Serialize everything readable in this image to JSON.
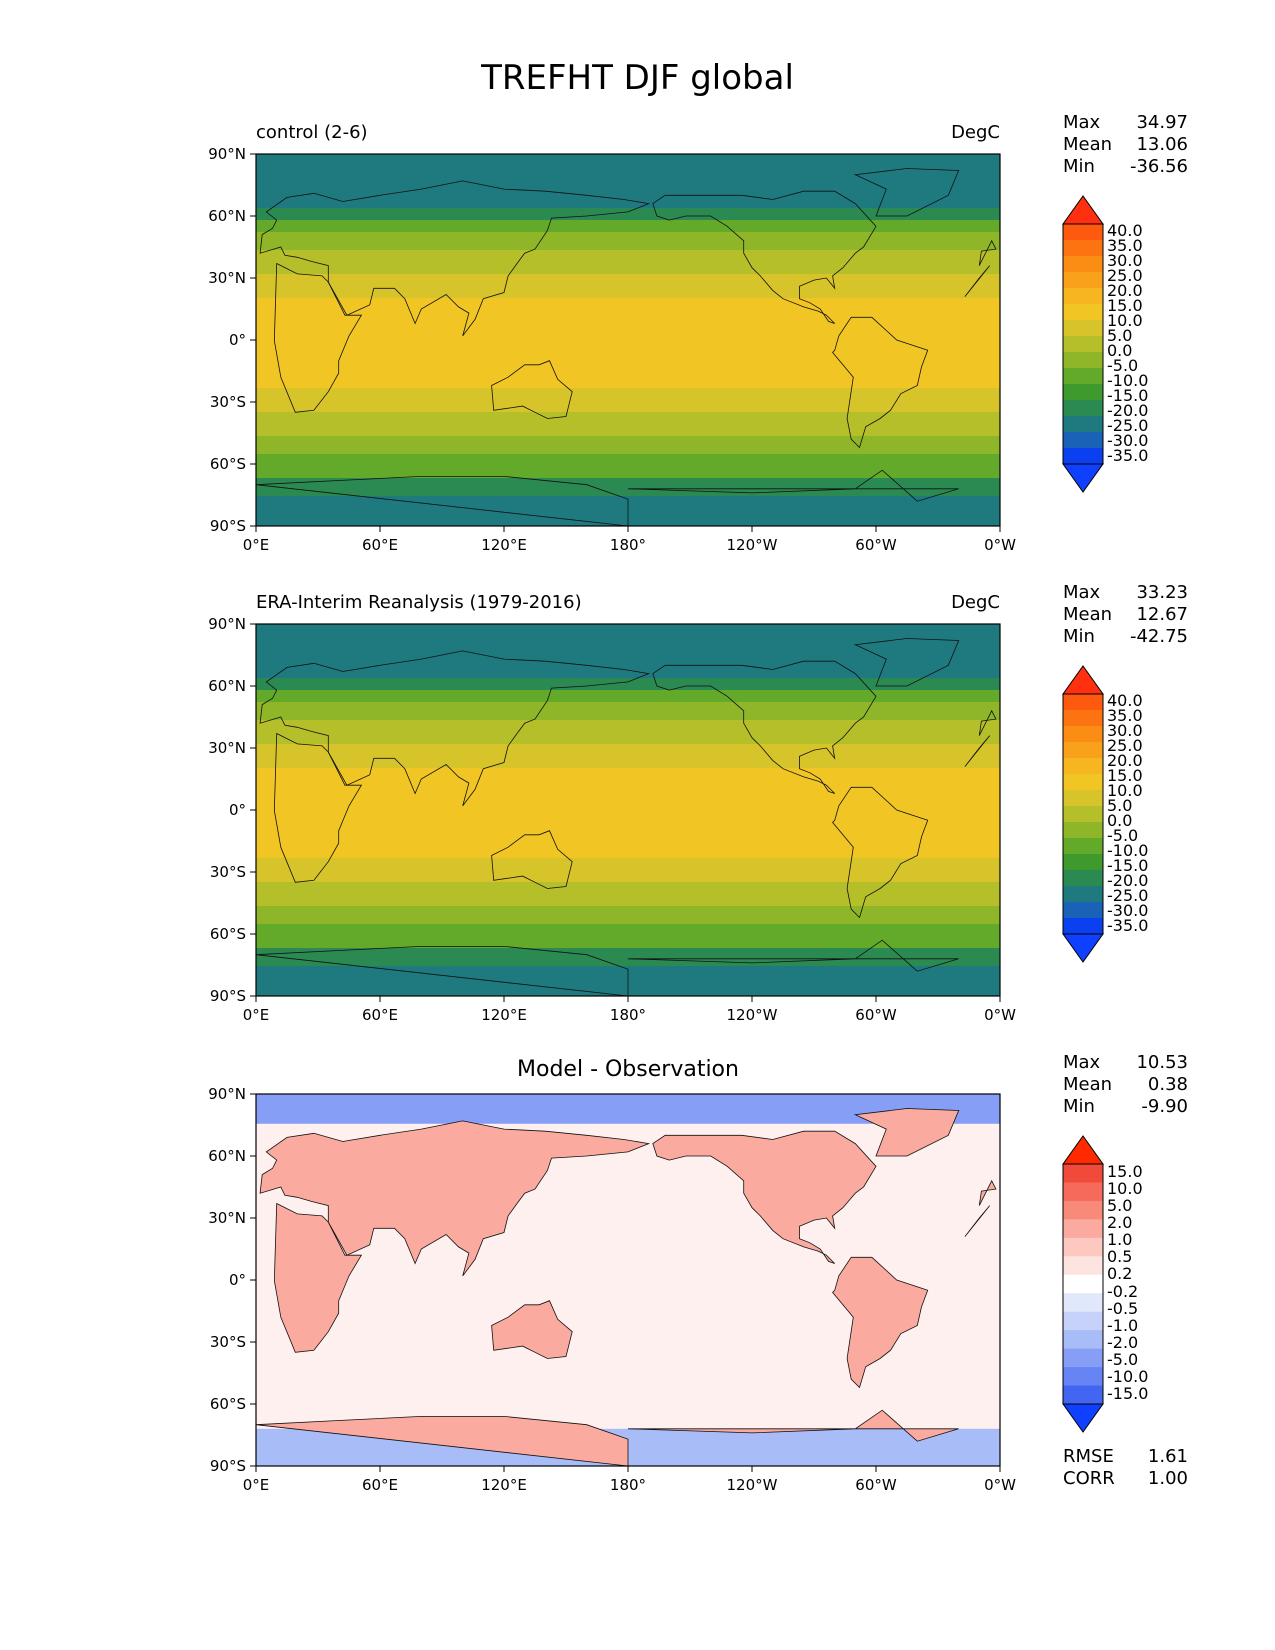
{
  "suptitle": "TREFHT DJF global",
  "lat_ticks": [
    "90°N",
    "60°N",
    "30°N",
    "0°",
    "30°S",
    "60°S",
    "90°S"
  ],
  "lon_ticks": [
    "0°E",
    "60°E",
    "120°E",
    "180°",
    "120°W",
    "60°W",
    "0°W"
  ],
  "panels": [
    {
      "id": "control",
      "title_left": "control (2-6)",
      "title_right": "DegC",
      "title_center": "",
      "stats": [
        {
          "label": "Max",
          "value": "34.97"
        },
        {
          "label": "Mean",
          "value": "13.06"
        },
        {
          "label": "Min",
          "value": "-36.56"
        }
      ],
      "colorbar": {
        "labels": [
          "40.0",
          "35.0",
          "30.0",
          "25.0",
          "20.0",
          "15.0",
          "10.0",
          "5.0",
          "0.0",
          "-5.0",
          "-10.0",
          "-15.0",
          "-20.0",
          "-25.0",
          "-30.0",
          "-35.0"
        ],
        "colors": [
          "#ff3010",
          "#fd5a10",
          "#fc7412",
          "#fb8c14",
          "#f9a11a",
          "#f7b51f",
          "#f1c624",
          "#d6c42a",
          "#b5bf2a",
          "#8fb529",
          "#64aa2a",
          "#3f9a2e",
          "#2a8a52",
          "#1f7a80",
          "#1a62b8",
          "#0a40f0",
          "#1040ff"
        ],
        "scale": "temperature"
      },
      "extra_stats": []
    },
    {
      "id": "observation",
      "title_left": "ERA-Interim Reanalysis (1979-2016)",
      "title_right": "DegC",
      "title_center": "",
      "stats": [
        {
          "label": "Max",
          "value": "33.23"
        },
        {
          "label": "Mean",
          "value": "12.67"
        },
        {
          "label": "Min",
          "value": "-42.75"
        }
      ],
      "colorbar": {
        "labels": [
          "40.0",
          "35.0",
          "30.0",
          "25.0",
          "20.0",
          "15.0",
          "10.0",
          "5.0",
          "0.0",
          "-5.0",
          "-10.0",
          "-15.0",
          "-20.0",
          "-25.0",
          "-30.0",
          "-35.0"
        ],
        "colors": [
          "#ff3010",
          "#fd5a10",
          "#fc7412",
          "#fb8c14",
          "#f9a11a",
          "#f7b51f",
          "#f1c624",
          "#d6c42a",
          "#b5bf2a",
          "#8fb529",
          "#64aa2a",
          "#3f9a2e",
          "#2a8a52",
          "#1f7a80",
          "#1a62b8",
          "#0a40f0",
          "#1040ff"
        ],
        "scale": "temperature"
      },
      "extra_stats": []
    },
    {
      "id": "difference",
      "title_left": "",
      "title_right": "",
      "title_center": "Model - Observation",
      "stats": [
        {
          "label": "Max",
          "value": "10.53"
        },
        {
          "label": "Mean",
          "value": "0.38"
        },
        {
          "label": "Min",
          "value": "-9.90"
        }
      ],
      "colorbar": {
        "labels": [
          "15.0",
          "10.0",
          "5.0",
          "2.0",
          "1.0",
          "0.5",
          "0.2",
          "-0.2",
          "-0.5",
          "-1.0",
          "-2.0",
          "-5.0",
          "-10.0",
          "-15.0"
        ],
        "colors": [
          "#ff2a00",
          "#f04a3a",
          "#f56a5a",
          "#f88a7a",
          "#fbaaa0",
          "#fcc8c0",
          "#fde4e0",
          "#ffffff",
          "#e2e8fc",
          "#c6d2fa",
          "#a8bcf8",
          "#869ef6",
          "#6684f4",
          "#4266f2",
          "#1040ff"
        ],
        "scale": "difference"
      },
      "extra_stats": [
        {
          "label": "RMSE",
          "value": "1.61"
        },
        {
          "label": "CORR",
          "value": "1.00"
        }
      ]
    }
  ]
}
